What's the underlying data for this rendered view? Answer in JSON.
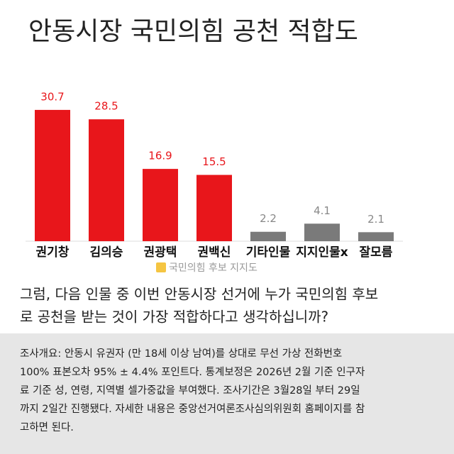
{
  "chart_data": {
    "type": "bar",
    "title": "안동시장 국민의힘 공천 적합도",
    "categories": [
      "권기창",
      "김의승",
      "권광택",
      "권백신",
      "기타인물",
      "지지인물x",
      "잘모름"
    ],
    "series": [
      {
        "name": "국민의힘 후보 지지도",
        "color": "#f5c542",
        "values": [
          30.7,
          28.5,
          16.9,
          15.5,
          2.2,
          4.1,
          2.1
        ],
        "bar_colors": [
          "#e8161b",
          "#e8161b",
          "#e8161b",
          "#e8161b",
          "#7a7a7a",
          "#7a7a7a",
          "#7a7a7a"
        ]
      }
    ],
    "ylim": [
      0,
      35
    ]
  },
  "question": [
    "그럼, 다음 인물 중 이번 안동시장 선거에 누가 국민의힘 후보",
    "로 공천을 받는 것이 가장 적합하다고 생각하십니까?"
  ],
  "note": [
    "조사개요:  안동시 유권자 (만 18세 이상 남여)를 상대로 무선 가상 전화번호",
    "100% 표본오차 95% ± 4.4% 포인트다. 통계보정은 2026년 2월 기준 인구자",
    "료 기준 성, 연령, 지역별 셀가중값을 부여했다. 조사기간은 3월28일 부터 29일",
    "까지 2일간 진행됐다. 자세한 내용은 중앙선거여론조사심의위원회 홈페이지를 참",
    "고하면 된다."
  ]
}
